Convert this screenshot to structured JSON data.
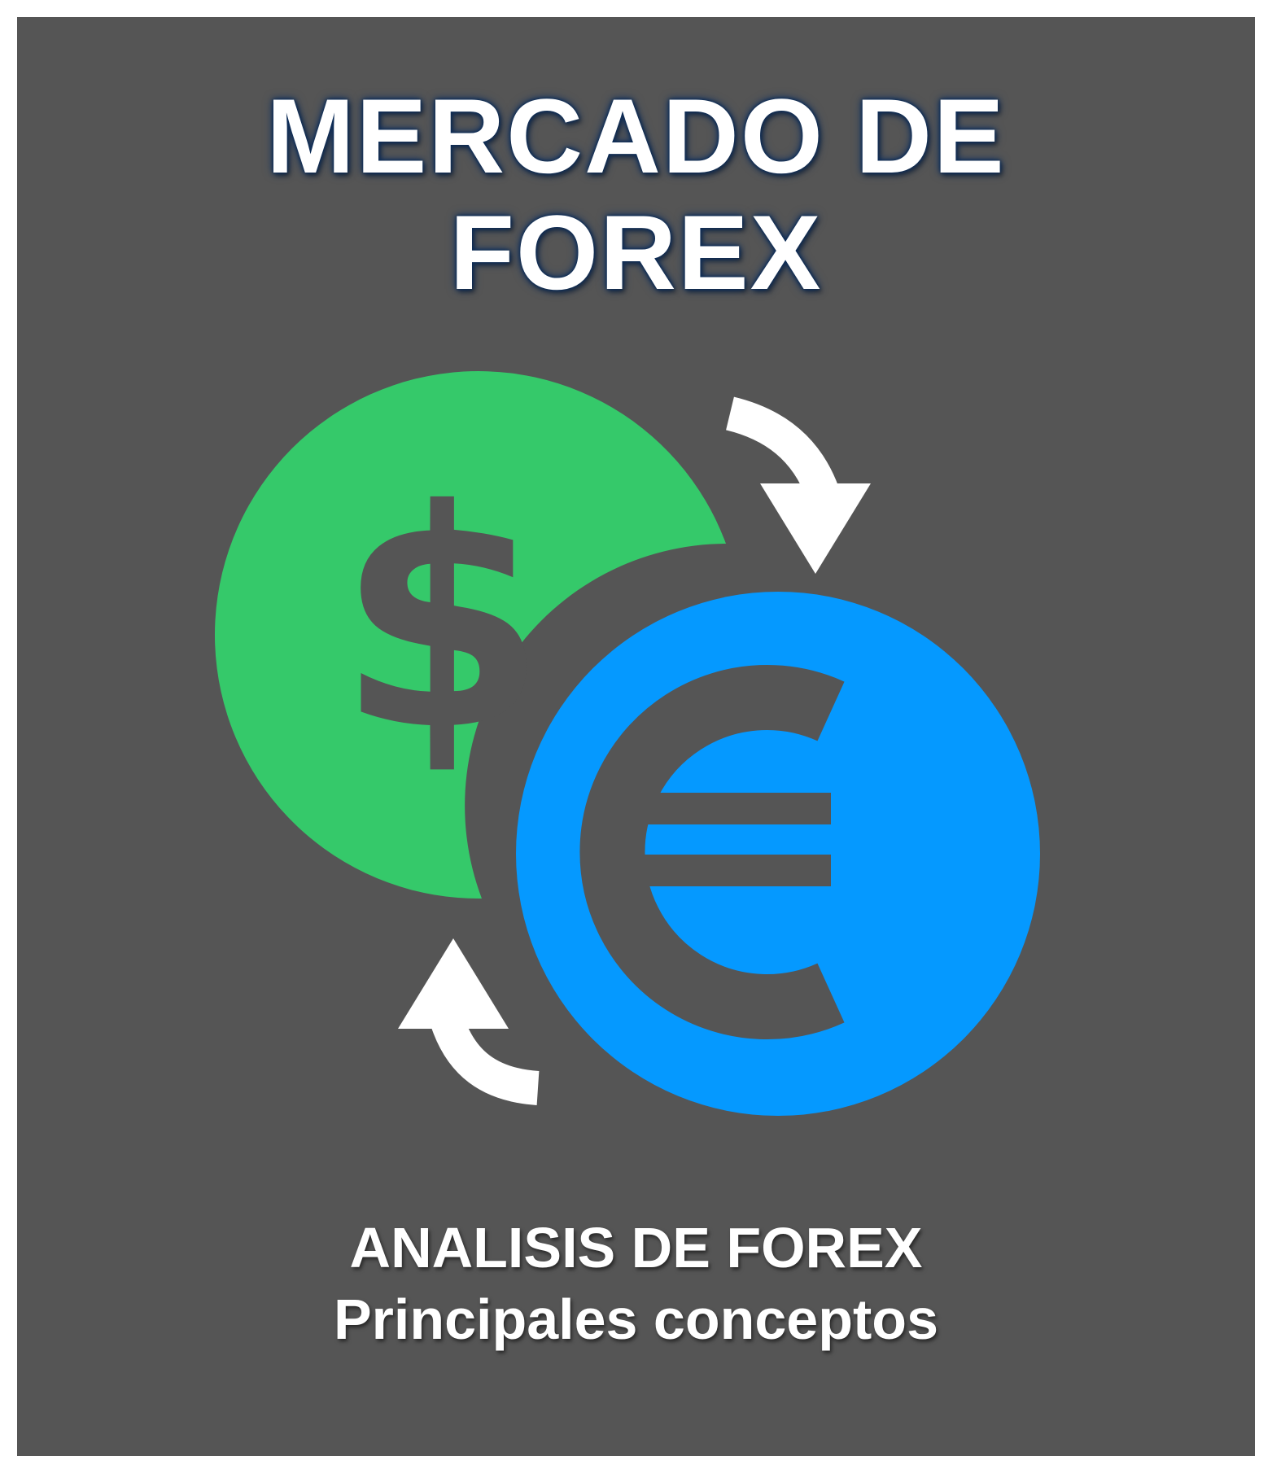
{
  "title": {
    "line1": "MERCADO DE",
    "line2": "FOREX"
  },
  "icons": {
    "dollar_coin": "dollar-coin-icon",
    "euro_coin": "euro-coin-icon",
    "arrow_top": "curved-arrow-down-icon",
    "arrow_bottom": "curved-arrow-up-icon"
  },
  "subtitle": {
    "line1": "ANALISIS DE FOREX",
    "line2": "Principales conceptos"
  },
  "colors": {
    "background": "#555555",
    "dollar_green": "#35c96a",
    "euro_blue": "#0599ff",
    "text": "#ffffff"
  }
}
